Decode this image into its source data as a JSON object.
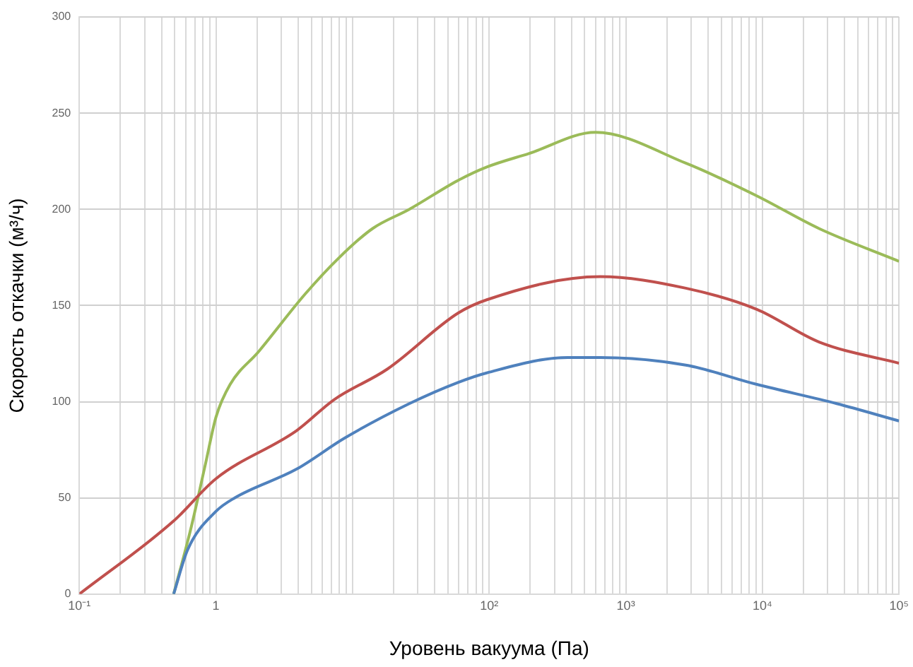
{
  "chart_data": {
    "type": "line",
    "xlabel": "Уровень вакуума (Па)",
    "ylabel": "Скорость откачки (м³/ч)",
    "log": "x",
    "grid": true,
    "legend": false,
    "marker": "none",
    "line_style": "solid",
    "xlim": [
      0.1,
      100000
    ],
    "ylim": [
      0,
      300
    ],
    "yticks": [
      0,
      50,
      100,
      150,
      200,
      250,
      300
    ],
    "xticks": [
      {
        "value": 0.1,
        "label": "10⁻¹"
      },
      {
        "value": 0.2,
        "label": null
      },
      {
        "value": 0.3,
        "label": null
      },
      {
        "value": 0.4,
        "label": null
      },
      {
        "value": 0.5,
        "label": null
      },
      {
        "value": 0.6,
        "label": null
      },
      {
        "value": 0.7,
        "label": null
      },
      {
        "value": 0.8,
        "label": null
      },
      {
        "value": 0.9,
        "label": null
      },
      {
        "value": 1,
        "label": "1"
      },
      {
        "value": 2,
        "label": null
      },
      {
        "value": 3,
        "label": null
      },
      {
        "value": 4,
        "label": null
      },
      {
        "value": 5,
        "label": null
      },
      {
        "value": 6,
        "label": null
      },
      {
        "value": 7,
        "label": null
      },
      {
        "value": 8,
        "label": null
      },
      {
        "value": 9,
        "label": null
      },
      {
        "value": 10,
        "label": null
      },
      {
        "value": 20,
        "label": null
      },
      {
        "value": 30,
        "label": null
      },
      {
        "value": 40,
        "label": null
      },
      {
        "value": 50,
        "label": null
      },
      {
        "value": 60,
        "label": null
      },
      {
        "value": 70,
        "label": null
      },
      {
        "value": 80,
        "label": null
      },
      {
        "value": 90,
        "label": null
      },
      {
        "value": 100,
        "label": "10²"
      },
      {
        "value": 200,
        "label": null
      },
      {
        "value": 300,
        "label": null
      },
      {
        "value": 400,
        "label": null
      },
      {
        "value": 500,
        "label": null
      },
      {
        "value": 600,
        "label": null
      },
      {
        "value": 700,
        "label": null
      },
      {
        "value": 800,
        "label": null
      },
      {
        "value": 900,
        "label": null
      },
      {
        "value": 1000,
        "label": "10³"
      },
      {
        "value": 2000,
        "label": null
      },
      {
        "value": 3000,
        "label": null
      },
      {
        "value": 4000,
        "label": null
      },
      {
        "value": 5000,
        "label": null
      },
      {
        "value": 6000,
        "label": null
      },
      {
        "value": 7000,
        "label": null
      },
      {
        "value": 8000,
        "label": null
      },
      {
        "value": 9000,
        "label": null
      },
      {
        "value": 10000,
        "label": "10⁴"
      },
      {
        "value": 20000,
        "label": null
      },
      {
        "value": 30000,
        "label": null
      },
      {
        "value": 40000,
        "label": null
      },
      {
        "value": 50000,
        "label": null
      },
      {
        "value": 60000,
        "label": null
      },
      {
        "value": 70000,
        "label": null
      },
      {
        "value": 80000,
        "label": null
      },
      {
        "value": 90000,
        "label": null
      },
      {
        "value": 100000,
        "label": "10⁵"
      }
    ],
    "series": [
      {
        "color": "#4f81bd",
        "x": [
          0.49,
          0.62,
          1,
          1.37,
          3.9,
          8.7,
          26,
          59,
          96,
          375,
          650,
          2750,
          9100,
          35000,
          100000
        ],
        "values": [
          0,
          23,
          43,
          50,
          65,
          81,
          99,
          110,
          115,
          123,
          123,
          119,
          109,
          99,
          90
        ]
      },
      {
        "color": "#c0504d",
        "x": [
          0.1,
          0.49,
          1,
          3.9,
          7.3,
          18,
          59,
          96,
          650,
          2750,
          9100,
          26000,
          100000
        ],
        "values": [
          0,
          38,
          60,
          85,
          101,
          117,
          146,
          153,
          165,
          159,
          148,
          131,
          120
        ]
      },
      {
        "color": "#9bbb59",
        "x": [
          0.49,
          0.66,
          0.84,
          1,
          1.27,
          2.05,
          4.5,
          8,
          14,
          26,
          59,
          96,
          195,
          600,
          2750,
          9100,
          26000,
          100000
        ],
        "values": [
          0,
          35,
          68,
          92,
          109,
          126,
          156,
          175,
          190,
          200,
          215,
          222,
          229,
          240,
          224,
          207,
          190,
          173
        ]
      }
    ]
  }
}
